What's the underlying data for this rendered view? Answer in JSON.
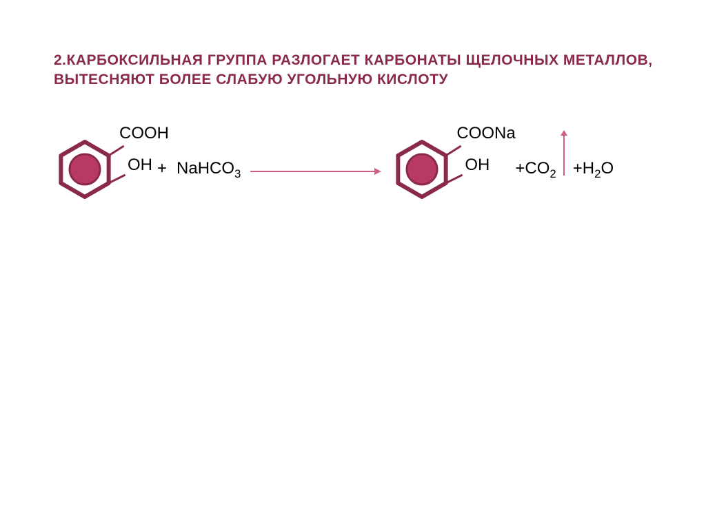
{
  "title": {
    "text": "2.КАРБОКСИЛЬНАЯ ГРУППА РАЗЛОГАЕТ КАРБОНАТЫ ЩЕЛОЧНЫХ МЕТАЛЛОВ, ВЫТЕСНЯЮТ БОЛЕЕ СЛАБУЮ УГОЛЬНУЮ КИСЛОТУ",
    "color": "#8a2a4a",
    "fontsize": 21
  },
  "reaction": {
    "reactant_mol": {
      "hex": {
        "stroke": "#8a2a4a",
        "fill_inner": "#b83a62",
        "stroke_width": 6,
        "size": 80,
        "inner_r": 22
      },
      "substituent_top": "COOH",
      "substituent_side": "OH",
      "bond_color": "#8a2a4a",
      "label_color": "#000000",
      "label_fontsize": 24
    },
    "plus1": "+",
    "reagent": "NaHCO",
    "reagent_sub": "3",
    "arrow": {
      "color": "#cf5f82",
      "length": 190,
      "head": 10,
      "stroke_width": 2
    },
    "product_mol": {
      "hex": {
        "stroke": "#8a2a4a",
        "fill_inner": "#b83a62",
        "stroke_width": 6,
        "size": 80,
        "inner_r": 22
      },
      "substituent_top": "COONa",
      "substituent_side": "OH",
      "bond_color": "#8a2a4a",
      "label_color": "#000000",
      "label_fontsize": 24
    },
    "plus2": "+",
    "prod2_a": "CO",
    "prod2_sub": "2",
    "plus3": "+",
    "prod3_a": "H",
    "prod3_sub": "2",
    "prod3_b": "O",
    "gas_arrow": {
      "color": "#cf5f82",
      "length": 60,
      "stroke_width": 2,
      "head": 8
    }
  }
}
